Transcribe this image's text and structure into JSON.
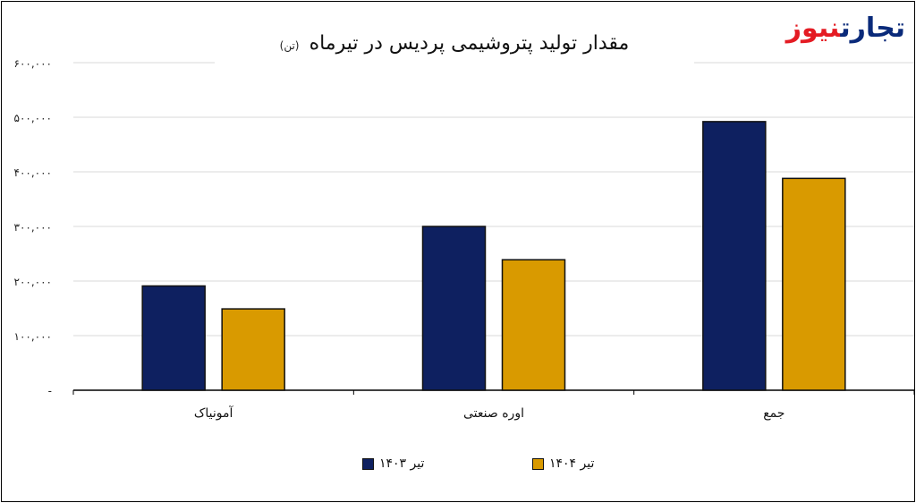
{
  "logo": {
    "word1": "تجارت",
    "word2": "نیوز"
  },
  "chart_data": {
    "type": "bar",
    "title": "مقدار تولید پتروشیمی پردیس در تیرماه",
    "title_unit": "(تن)",
    "categories": [
      "آمونیاک",
      "اوره صنعتی",
      "جمع"
    ],
    "series": [
      {
        "name": "تیر ۱۴۰۳",
        "values": [
          191000,
          300000,
          492000
        ],
        "color": "#0e2060"
      },
      {
        "name": "تیر ۱۴۰۴",
        "values": [
          149000,
          239000,
          388000
        ],
        "color": "#d99a00"
      }
    ],
    "ylim": [
      0,
      600000
    ],
    "yticks": [
      0,
      100000,
      200000,
      300000,
      400000,
      500000,
      600000
    ],
    "ytick_labels": [
      "-",
      "۱۰۰,۰۰۰",
      "۲۰۰,۰۰۰",
      "۳۰۰,۰۰۰",
      "۴۰۰,۰۰۰",
      "۵۰۰,۰۰۰",
      "۶۰۰,۰۰۰"
    ],
    "grid": true,
    "legend_position": "bottom"
  }
}
